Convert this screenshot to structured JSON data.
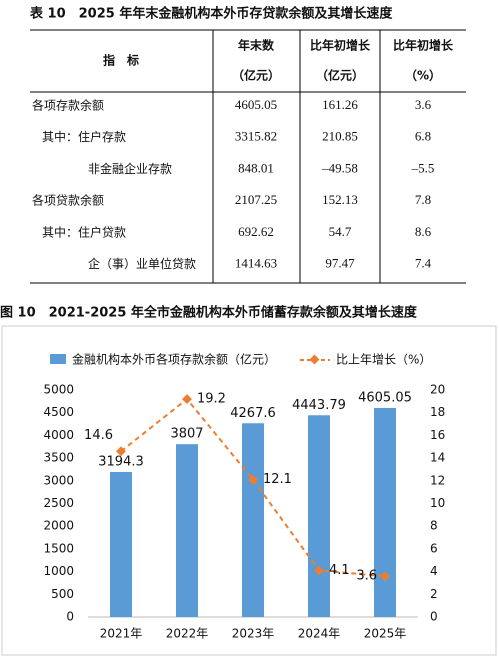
{
  "table": {
    "title": "表 10　2025 年年末金融机构本外币存贷款余额及其增长速度",
    "header": [
      [
        "指　标"
      ],
      [
        "年末数",
        "（亿元）"
      ],
      [
        "比年初增长",
        "（亿元）"
      ],
      [
        "比年初增长",
        "（%）"
      ]
    ],
    "rows": [
      [
        "各项存款余额",
        "4605.05",
        "161.26",
        "3.6"
      ],
      [
        "其中：住户存款",
        "3315.82",
        "210.85",
        "6.8"
      ],
      [
        "非金融企业存款",
        "848.01",
        "–49.58",
        "–5.5"
      ],
      [
        "各项贷款余额",
        "2107.25",
        "152.13",
        "7.8"
      ],
      [
        "其中：住户贷款",
        "692.62",
        "54.7",
        "8.6"
      ],
      [
        "企（事）业单位贷款",
        "1414.63",
        "97.47",
        "7.4"
      ]
    ]
  },
  "chart_data": {
    "type": "bar_line",
    "title": "图 10　2021-2025 年全市金融机构本外币储蓄存款余额及其增长速度",
    "categories": [
      "2021年",
      "2022年",
      "2023年",
      "2024年",
      "2025年"
    ],
    "series": [
      {
        "name": "金融机构本外币各项存款余额（亿元）",
        "color": "#5b9bd5",
        "values": [
          3194.3,
          3807,
          4267.6,
          4443.79,
          4605.05
        ]
      },
      {
        "name": "比上年增长（%）",
        "color": "#ed7d31",
        "axis": "y2",
        "values": [
          14.6,
          19.2,
          12.1,
          4.1,
          3.6
        ]
      }
    ],
    "ylim": [
      0,
      5000
    ],
    "yticks": [
      0,
      500,
      1000,
      1500,
      2000,
      2500,
      3000,
      3500,
      4000,
      4500,
      5000
    ],
    "y2lim": [
      0,
      20
    ],
    "y2ticks": [
      0,
      2,
      4,
      6,
      8,
      10,
      12,
      14,
      16,
      18,
      20
    ]
  }
}
